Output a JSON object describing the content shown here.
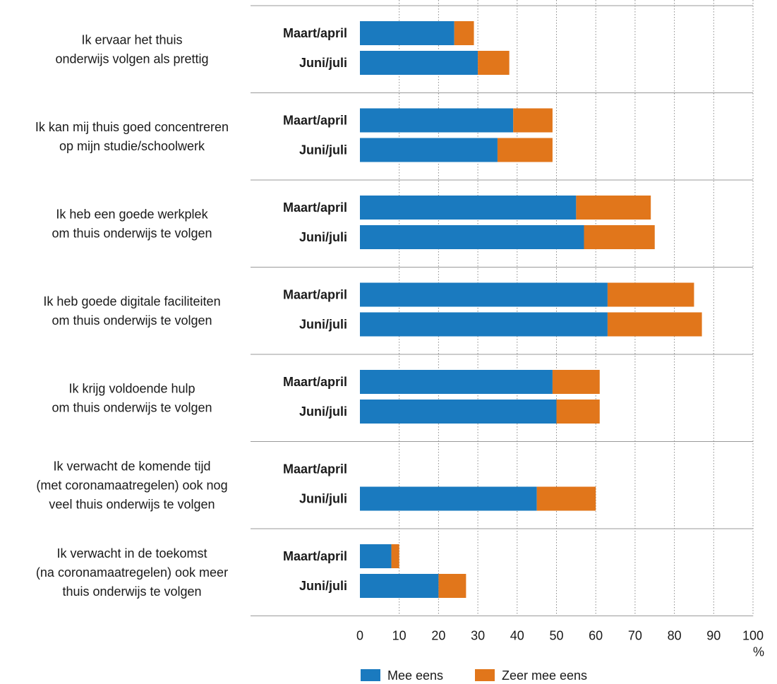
{
  "chart_data": {
    "type": "bar",
    "orientation": "horizontal",
    "stacked": true,
    "xlim": [
      0,
      100
    ],
    "xticks": [
      0,
      10,
      20,
      30,
      40,
      50,
      60,
      70,
      80,
      90,
      100
    ],
    "xunit": "%",
    "grid": "vertical dotted",
    "legend_position": "bottom",
    "series": [
      {
        "name": "Mee eens",
        "color": "#1a7abf"
      },
      {
        "name": "Zeer mee eens",
        "color": "#e1761b"
      }
    ],
    "groups": [
      {
        "label": [
          "Ik ervaar het thuis",
          "onderwijs volgen als prettig"
        ],
        "bars": [
          {
            "period": "Maart/april",
            "values": [
              24,
              5
            ]
          },
          {
            "period": "Juni/juli",
            "values": [
              30,
              8
            ]
          }
        ]
      },
      {
        "label": [
          "Ik kan mij thuis goed concentreren",
          "op mijn studie/schoolwerk"
        ],
        "bars": [
          {
            "period": "Maart/april",
            "values": [
              39,
              10
            ]
          },
          {
            "period": "Juni/juli",
            "values": [
              35,
              14
            ]
          }
        ]
      },
      {
        "label": [
          "Ik heb een goede werkplek",
          "om thuis onderwijs te volgen"
        ],
        "bars": [
          {
            "period": "Maart/april",
            "values": [
              55,
              19
            ]
          },
          {
            "period": "Juni/juli",
            "values": [
              57,
              18
            ]
          }
        ]
      },
      {
        "label": [
          "Ik heb goede digitale faciliteiten",
          "om thuis onderwijs te volgen"
        ],
        "bars": [
          {
            "period": "Maart/april",
            "values": [
              63,
              22
            ]
          },
          {
            "period": "Juni/juli",
            "values": [
              63,
              24
            ]
          }
        ]
      },
      {
        "label": [
          "Ik krijg voldoende hulp",
          "om thuis onderwijs te volgen"
        ],
        "bars": [
          {
            "period": "Maart/april",
            "values": [
              49,
              12
            ]
          },
          {
            "period": "Juni/juli",
            "values": [
              50,
              11
            ]
          }
        ]
      },
      {
        "label": [
          "Ik verwacht de komende tijd",
          "(met coronamaatregelen) ook nog",
          "veel thuis onderwijs te volgen"
        ],
        "bars": [
          {
            "period": "Maart/april",
            "values": null
          },
          {
            "period": "Juni/juli",
            "values": [
              45,
              15
            ]
          }
        ]
      },
      {
        "label": [
          "Ik verwacht in de toekomst",
          "(na coronamaatregelen) ook meer",
          "thuis onderwijs te volgen"
        ],
        "bars": [
          {
            "period": "Maart/april",
            "values": [
              8,
              2
            ]
          },
          {
            "period": "Juni/juli",
            "values": [
              20,
              7
            ]
          }
        ]
      }
    ]
  }
}
